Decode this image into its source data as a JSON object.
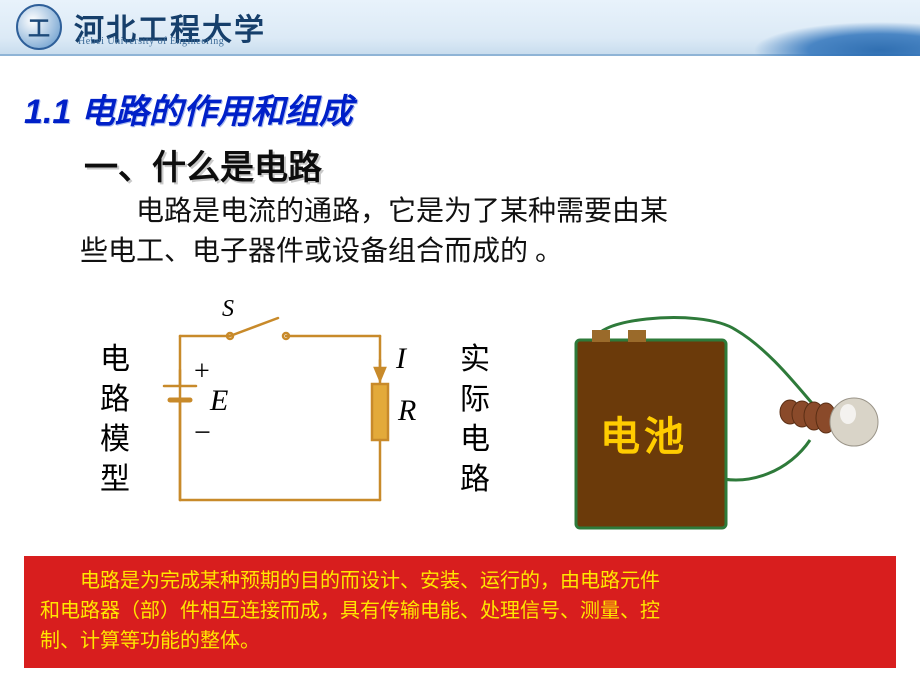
{
  "header": {
    "uni_cn": "河北工程大学",
    "uni_en": "Hebei University of Engineering"
  },
  "section_title": "1.1   电路的作用和组成",
  "sub_heading": "一、什么是电路",
  "body_line1": "电路是电流的通路，它是为了某种需要由某",
  "body_line2": "些电工、电子器件或设备组合而成的 。",
  "label_model": "电路模型",
  "label_real": "实际电路",
  "circuit": {
    "stroke": "#c88a2a",
    "stroke_width": 2.5,
    "resistor_fill": "#e3aa3a",
    "S": "S",
    "plus": "+",
    "minus": "−",
    "E": "E",
    "I": "I",
    "R": "R",
    "label_color": "#000000",
    "label_fontsize": 28
  },
  "battery": {
    "body_fill": "#6b3a0a",
    "body_stroke": "#2e7a3a",
    "text": "电池",
    "text_color": "#ffcc00",
    "text_fontsize": 40,
    "wire_color": "#2e7a3a",
    "bulb_fill": "#d9d4c8",
    "bulb_socket": "#8a4a2a"
  },
  "redbox": {
    "bg": "#d81e1e",
    "fg": "#ffe600",
    "line1": "电路是为完成某种预期的目的而设计、安装、运行的，由电路元件",
    "line2": "和电路器（部）件相互连接而成，具有传输电能、处理信号、测量、控",
    "line3": "制、计算等功能的整体。"
  }
}
